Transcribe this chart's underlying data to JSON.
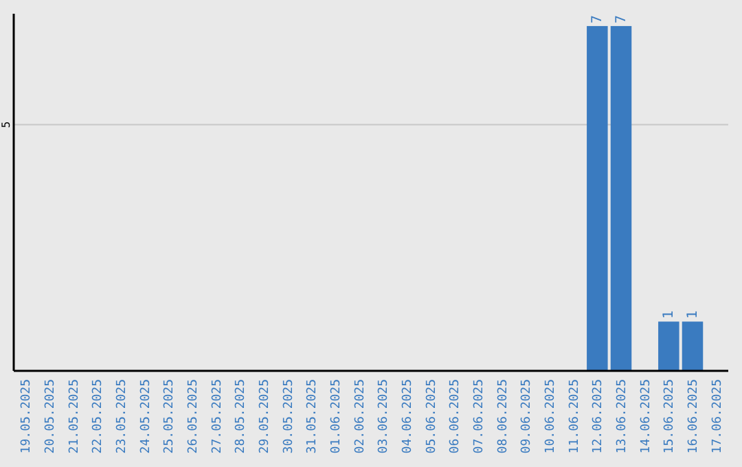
{
  "chart_data": {
    "type": "bar",
    "categories": [
      "19.05.2025",
      "20.05.2025",
      "21.05.2025",
      "22.05.2025",
      "23.05.2025",
      "24.05.2025",
      "25.05.2025",
      "26.05.2025",
      "27.05.2025",
      "28.05.2025",
      "29.05.2025",
      "30.05.2025",
      "31.05.2025",
      "01.06.2025",
      "02.06.2025",
      "03.06.2025",
      "04.06.2025",
      "05.06.2025",
      "06.06.2025",
      "07.06.2025",
      "08.06.2025",
      "09.06.2025",
      "10.06.2025",
      "11.06.2025",
      "12.06.2025",
      "13.06.2025",
      "14.06.2025",
      "15.06.2025",
      "16.06.2025",
      "17.06.2025"
    ],
    "values": [
      null,
      null,
      null,
      null,
      null,
      null,
      null,
      null,
      null,
      null,
      null,
      null,
      null,
      null,
      null,
      null,
      null,
      null,
      null,
      null,
      null,
      null,
      null,
      null,
      7,
      7,
      null,
      1,
      1,
      null
    ],
    "data_labels": true,
    "color": "#3a7bc0",
    "ylim": [
      0,
      7.25
    ],
    "yticks": [
      5
    ],
    "grid": "y"
  }
}
